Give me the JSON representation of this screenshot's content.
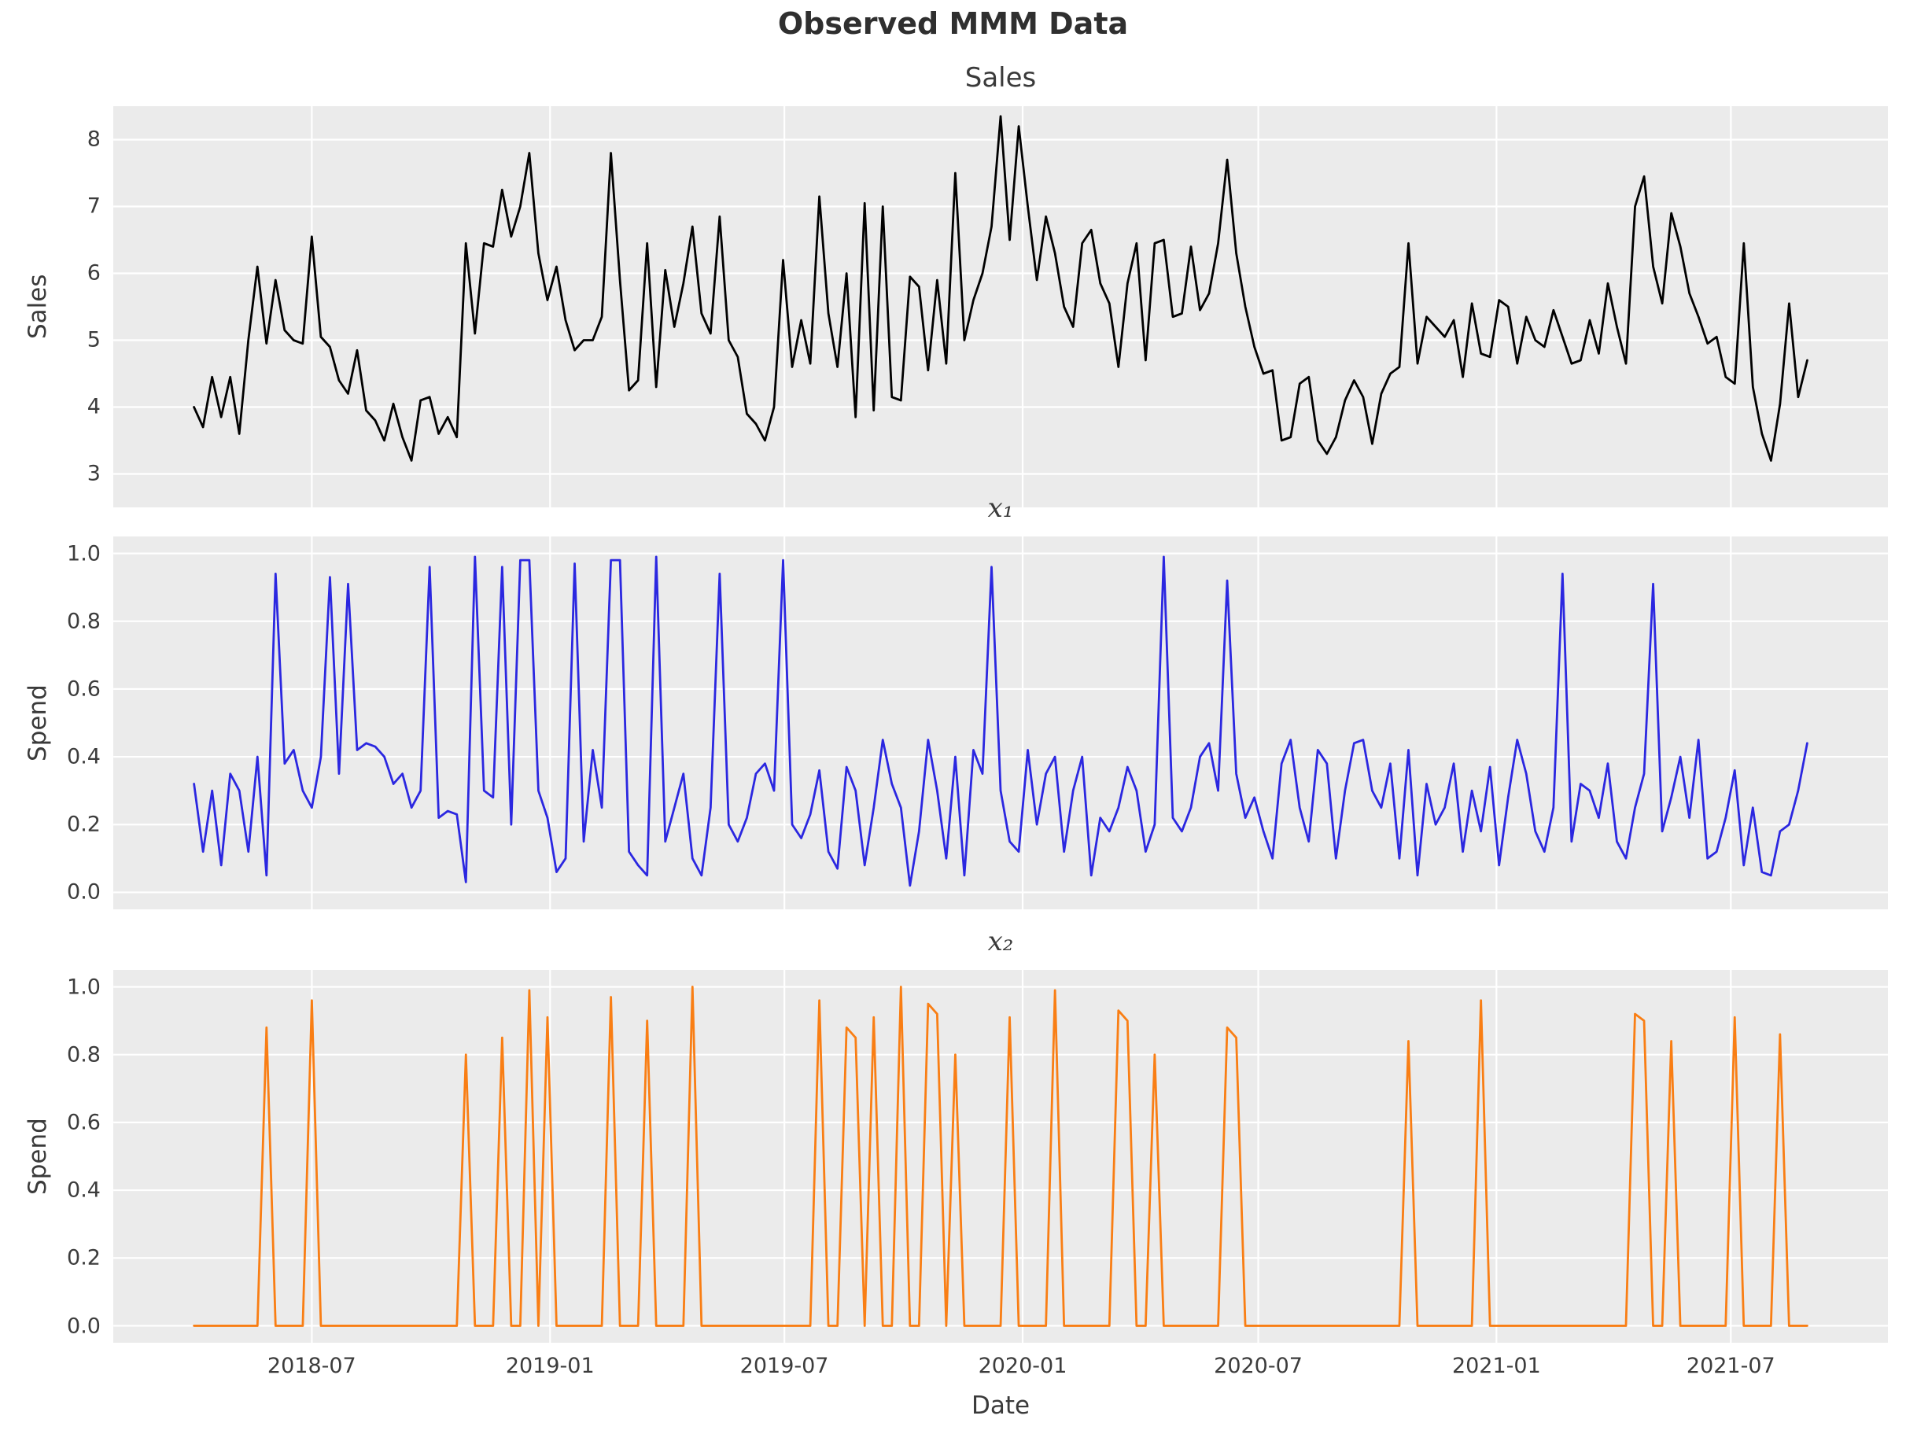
{
  "figure": {
    "title": "Observed MMM Data",
    "background_color": "#ffffff",
    "panel_background_color": "#ebebeb",
    "grid_color": "#ffffff",
    "text_color": "#3a3a3a"
  },
  "chart_data": [
    {
      "type": "line",
      "title": "Sales",
      "title_italic": false,
      "ylabel": "Sales",
      "color": "#000000",
      "ylim": [
        2.5,
        8.5
      ],
      "yticks": [
        3,
        4,
        5,
        6,
        7,
        8
      ],
      "ytick_labels": [
        "3",
        "4",
        "5",
        "6",
        "7",
        "8"
      ],
      "show_x_tick_labels": false,
      "values": [
        4.0,
        3.7,
        4.45,
        3.85,
        4.45,
        3.6,
        5.0,
        6.1,
        4.95,
        5.9,
        5.15,
        5.0,
        4.95,
        6.55,
        5.05,
        4.9,
        4.4,
        4.2,
        4.85,
        3.95,
        3.8,
        3.5,
        4.05,
        3.55,
        3.2,
        4.1,
        4.15,
        3.6,
        3.85,
        3.55,
        6.45,
        5.1,
        6.45,
        6.4,
        7.25,
        6.55,
        7.0,
        7.8,
        6.3,
        5.6,
        6.1,
        5.3,
        4.85,
        5.0,
        5.0,
        5.35,
        7.8,
        5.9,
        4.25,
        4.4,
        6.45,
        4.3,
        6.05,
        5.2,
        5.85,
        6.7,
        5.4,
        5.1,
        6.85,
        5.0,
        4.75,
        3.9,
        3.75,
        3.5,
        4.0,
        6.2,
        4.6,
        5.3,
        4.65,
        7.15,
        5.4,
        4.6,
        6.0,
        3.85,
        7.05,
        3.95,
        7.0,
        4.15,
        4.1,
        5.95,
        5.8,
        4.55,
        5.9,
        4.65,
        7.5,
        5.0,
        5.6,
        6.0,
        6.7,
        8.35,
        6.5,
        8.2,
        7.0,
        5.9,
        6.85,
        6.3,
        5.5,
        5.2,
        6.45,
        6.65,
        5.85,
        5.55,
        4.6,
        5.85,
        6.45,
        4.7,
        6.45,
        6.5,
        5.35,
        5.4,
        6.4,
        5.45,
        5.7,
        6.45,
        7.7,
        6.3,
        5.5,
        4.9,
        4.5,
        4.55,
        3.5,
        3.55,
        4.35,
        4.45,
        3.5,
        3.3,
        3.55,
        4.1,
        4.4,
        4.15,
        3.45,
        4.2,
        4.5,
        4.6,
        6.45,
        4.65,
        5.35,
        5.2,
        5.05,
        5.3,
        4.45,
        5.55,
        4.8,
        4.75,
        5.6,
        5.5,
        4.65,
        5.35,
        5.0,
        4.9,
        5.45,
        5.05,
        4.65,
        4.7,
        5.3,
        4.8,
        5.85,
        5.2,
        4.65,
        7.0,
        7.45,
        6.1,
        5.55,
        6.9,
        6.4,
        5.7,
        5.35,
        4.95,
        5.05,
        4.45,
        4.35,
        6.45,
        4.3,
        3.6,
        3.2,
        4.05,
        5.55,
        4.15,
        4.7
      ]
    },
    {
      "type": "line",
      "title": "x₁",
      "title_italic": true,
      "ylabel": "Spend",
      "color": "#2b27e0",
      "ylim": [
        -0.05,
        1.05
      ],
      "yticks": [
        0.0,
        0.2,
        0.4,
        0.6,
        0.8,
        1.0
      ],
      "ytick_labels": [
        "0.0",
        "0.2",
        "0.4",
        "0.6",
        "0.8",
        "1.0"
      ],
      "show_x_tick_labels": false,
      "values": [
        0.32,
        0.12,
        0.3,
        0.08,
        0.35,
        0.3,
        0.12,
        0.4,
        0.05,
        0.94,
        0.38,
        0.42,
        0.3,
        0.25,
        0.4,
        0.93,
        0.35,
        0.91,
        0.42,
        0.44,
        0.43,
        0.4,
        0.32,
        0.35,
        0.25,
        0.3,
        0.96,
        0.22,
        0.24,
        0.23,
        0.03,
        0.99,
        0.3,
        0.28,
        0.96,
        0.2,
        0.98,
        0.98,
        0.3,
        0.22,
        0.06,
        0.1,
        0.97,
        0.15,
        0.42,
        0.25,
        0.98,
        0.98,
        0.12,
        0.08,
        0.05,
        0.99,
        0.15,
        0.25,
        0.35,
        0.1,
        0.05,
        0.25,
        0.94,
        0.2,
        0.15,
        0.22,
        0.35,
        0.38,
        0.3,
        0.98,
        0.2,
        0.16,
        0.23,
        0.36,
        0.12,
        0.07,
        0.37,
        0.3,
        0.08,
        0.25,
        0.45,
        0.32,
        0.25,
        0.02,
        0.18,
        0.45,
        0.3,
        0.1,
        0.4,
        0.05,
        0.42,
        0.35,
        0.96,
        0.3,
        0.15,
        0.12,
        0.42,
        0.2,
        0.35,
        0.4,
        0.12,
        0.3,
        0.4,
        0.05,
        0.22,
        0.18,
        0.25,
        0.37,
        0.3,
        0.12,
        0.2,
        0.99,
        0.22,
        0.18,
        0.25,
        0.4,
        0.44,
        0.3,
        0.92,
        0.35,
        0.22,
        0.28,
        0.18,
        0.1,
        0.38,
        0.45,
        0.25,
        0.15,
        0.42,
        0.38,
        0.1,
        0.3,
        0.44,
        0.45,
        0.3,
        0.25,
        0.38,
        0.1,
        0.42,
        0.05,
        0.32,
        0.2,
        0.25,
        0.38,
        0.12,
        0.3,
        0.18,
        0.37,
        0.08,
        0.28,
        0.45,
        0.35,
        0.18,
        0.12,
        0.25,
        0.94,
        0.15,
        0.32,
        0.3,
        0.22,
        0.38,
        0.15,
        0.1,
        0.25,
        0.35,
        0.91,
        0.18,
        0.28,
        0.4,
        0.22,
        0.45,
        0.1,
        0.12,
        0.22,
        0.36,
        0.08,
        0.25,
        0.06,
        0.05,
        0.18,
        0.2,
        0.3,
        0.44
      ]
    },
    {
      "type": "line",
      "title": "x₂",
      "title_italic": true,
      "ylabel": "Spend",
      "color": "#f97e14",
      "ylim": [
        -0.05,
        1.05
      ],
      "yticks": [
        0.0,
        0.2,
        0.4,
        0.6,
        0.8,
        1.0
      ],
      "ytick_labels": [
        "0.0",
        "0.2",
        "0.4",
        "0.6",
        "0.8",
        "1.0"
      ],
      "show_x_tick_labels": true,
      "values": [
        0,
        0,
        0,
        0,
        0,
        0,
        0,
        0,
        0.88,
        0,
        0,
        0,
        0,
        0.96,
        0,
        0,
        0,
        0,
        0,
        0,
        0,
        0,
        0,
        0,
        0,
        0,
        0,
        0,
        0,
        0,
        0.8,
        0,
        0,
        0,
        0.85,
        0,
        0,
        0.99,
        0,
        0.91,
        0,
        0,
        0,
        0,
        0,
        0,
        0.97,
        0,
        0,
        0,
        0.9,
        0,
        0,
        0,
        0,
        1.0,
        0,
        0,
        0,
        0,
        0,
        0,
        0,
        0,
        0,
        0,
        0,
        0,
        0,
        0.96,
        0,
        0,
        0.88,
        0.85,
        0,
        0.91,
        0,
        0,
        1.0,
        0,
        0,
        0.95,
        0.92,
        0,
        0.8,
        0,
        0,
        0,
        0,
        0,
        0.91,
        0,
        0,
        0,
        0,
        0.99,
        0,
        0,
        0,
        0,
        0,
        0,
        0.93,
        0.9,
        0,
        0,
        0.8,
        0,
        0,
        0,
        0,
        0,
        0,
        0,
        0.88,
        0.85,
        0,
        0,
        0,
        0,
        0,
        0,
        0,
        0,
        0,
        0,
        0,
        0,
        0,
        0,
        0,
        0,
        0,
        0,
        0.84,
        0,
        0,
        0,
        0,
        0,
        0,
        0,
        0.96,
        0,
        0,
        0,
        0,
        0,
        0,
        0,
        0,
        0,
        0,
        0,
        0,
        0,
        0,
        0,
        0,
        0.92,
        0.9,
        0,
        0,
        0.84,
        0,
        0,
        0,
        0,
        0,
        0,
        0.91,
        0,
        0,
        0,
        0,
        0.86,
        0,
        0,
        0
      ]
    }
  ],
  "x_axis": {
    "label": "Date",
    "unit": "week",
    "n_points": 179,
    "xlim_weeks": [
      -8.9,
      186.9
    ],
    "tick_weeks": [
      13,
      39.29,
      65.14,
      91.43,
      117.43,
      143.71,
      169.57
    ],
    "tick_labels": [
      "2018-07",
      "2019-01",
      "2019-07",
      "2020-01",
      "2020-07",
      "2021-01",
      "2021-07"
    ]
  }
}
